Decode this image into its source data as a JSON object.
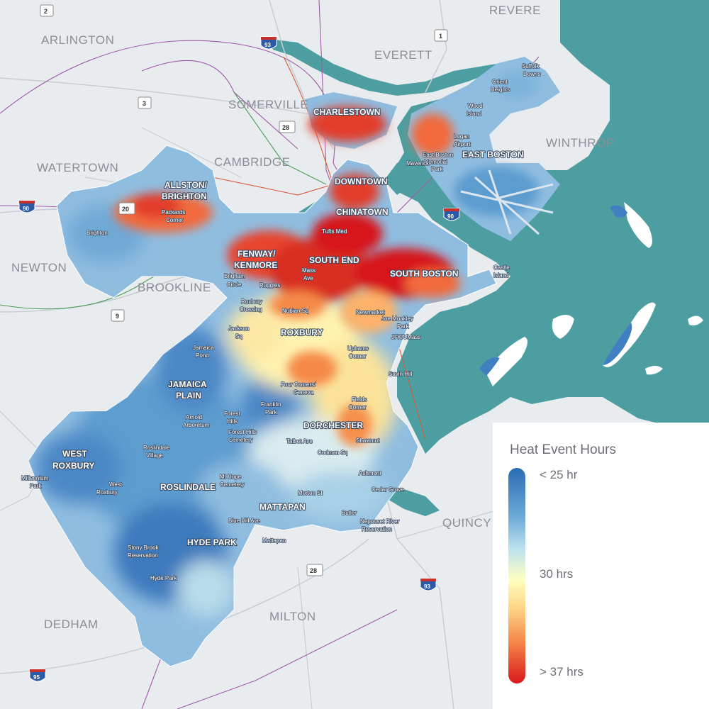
{
  "towns": [
    "ARLINGTON",
    "REVERE",
    "EVERETT",
    "SOMERVILLE",
    "WINTHROP",
    "WATERTOWN",
    "CAMBRIDGE",
    "NEWTON",
    "BROOKLINE",
    "QUINCY",
    "DEDHAM",
    "MILTON"
  ],
  "neighborhoods": [
    "CHARLESTOWN",
    "EAST BOSTON",
    "DOWNTOWN",
    "CHINATOWN",
    "ALLSTON/",
    "BRIGHTON",
    "FENWAY/",
    "KENMORE",
    "SOUTH END",
    "SOUTH BOSTON",
    "ROXBURY",
    "JAMAICA",
    "PLAIN",
    "DORCHESTER",
    "WEST",
    "ROXBURY",
    "ROSLINDALE",
    "MATTAPAN",
    "HYDE PARK"
  ],
  "places": [
    "Suffolk",
    "Downs",
    "Orient",
    "Heights",
    "Wood",
    "Island",
    "Logan",
    "Airport",
    "East Boston",
    "Memorial",
    "Park",
    "Maverick",
    "Packards",
    "Corner",
    "Brighton",
    "Tufts Med",
    "Mass",
    "Ave",
    "Brigham",
    "Circle",
    "Ruggles",
    "Castle",
    "Island",
    "Roxbury",
    "Crossing",
    "Nubian Sq",
    "Newmarket",
    "Joe Moakley",
    "Park",
    "JFK/UMass",
    "Jackson",
    "Sq",
    "Uphams",
    "Corner",
    "Savin Hill",
    "Jamaica",
    "Pond",
    "Four Corners/",
    "Geneva",
    "Franklin",
    "Park",
    "Fields",
    "Corner",
    "Arnold",
    "Arboretum",
    "Forest",
    "Hills",
    "Forest Hills",
    "Cemetery",
    "Talbot Ave",
    "Shawmut",
    "Roslindale",
    "Village",
    "Codman Sq",
    "Millennium",
    "Park",
    "Mt Hope",
    "Cemetery",
    "Ashmont",
    "West",
    "Roxbury",
    "Cedar Grove",
    "Morton St",
    "Blue Hill Ave",
    "Butler",
    "Neponset River",
    "Reservation",
    "Stony Brook",
    "Reservation",
    "Mattapan",
    "Hyde Park"
  ],
  "shields": {
    "route_2": "2",
    "route_1": "1",
    "route_3": "3",
    "route_28_north": "28",
    "route_20": "20",
    "route_9": "9",
    "route_28_south": "28",
    "i93_north": "93",
    "i90_west": "90",
    "i90_east": "90",
    "i93_south": "93",
    "i95": "95"
  },
  "legend": {
    "title": "Heat Event Hours",
    "high_label": "< 25 hr",
    "mid_label": "30 hrs",
    "low_label": "> 37 hrs",
    "colors": [
      "#2a6db5",
      "#6aa8d6",
      "#bfe3ee",
      "#ffffbf",
      "#fdd182",
      "#f57f45",
      "#d7191c"
    ]
  },
  "colors": {
    "land": "#e9ecef",
    "water": "#4c9ea0",
    "boston_base": "#8fbde0"
  }
}
